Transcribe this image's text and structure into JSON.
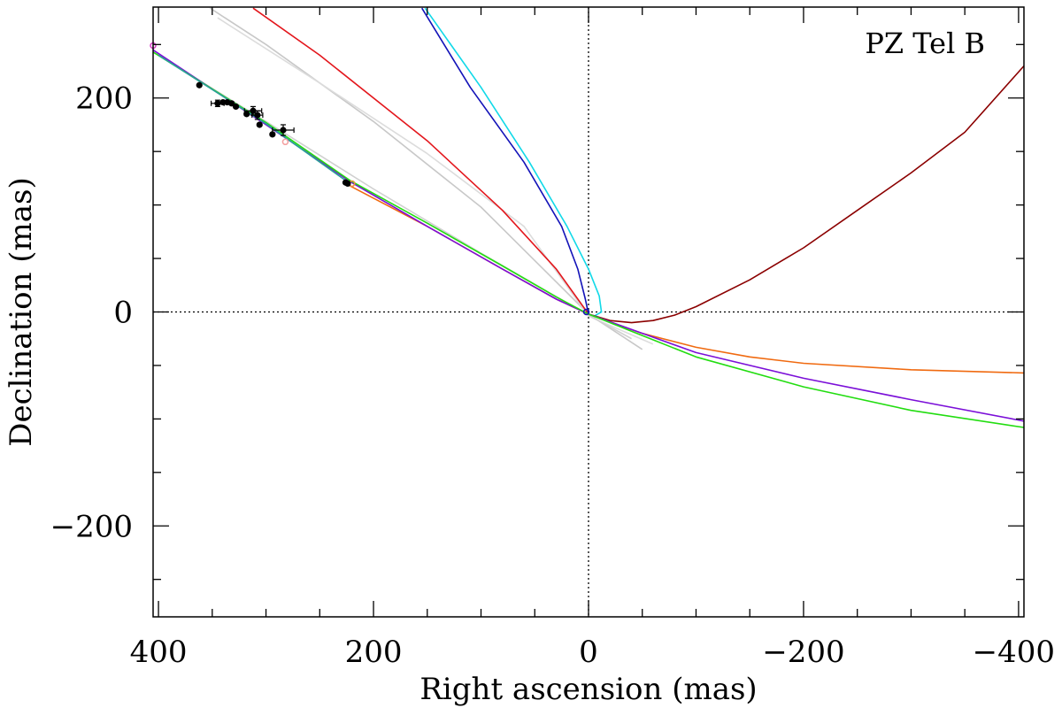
{
  "chart_data": {
    "type": "line",
    "title": "",
    "annotation": "PZ Tel B",
    "xlabel": "Right ascension (mas)",
    "ylabel": "Declination (mas)",
    "xlim": [
      405,
      -405
    ],
    "ylim": [
      -285,
      285
    ],
    "x_ticks": [
      {
        "value": 400,
        "label": "400"
      },
      {
        "value": 200,
        "label": "200"
      },
      {
        "value": 0,
        "label": "0"
      },
      {
        "value": -200,
        "label": "−200"
      },
      {
        "value": -400,
        "label": "−400"
      }
    ],
    "y_ticks": [
      {
        "value": 200,
        "label": "200"
      },
      {
        "value": 0,
        "label": "0"
      },
      {
        "value": -200,
        "label": "−200"
      }
    ],
    "minor_tick_step": 50,
    "zero_lines": true,
    "series": [
      {
        "name": "gray-1",
        "color": "#c8c8c8",
        "points": [
          [
            352,
            284
          ],
          [
            300,
            250
          ],
          [
            200,
            178
          ],
          [
            100,
            98
          ],
          [
            0,
            -2
          ],
          [
            -50,
            -35
          ]
        ]
      },
      {
        "name": "gray-2",
        "color": "#dcdcdc",
        "points": [
          [
            345,
            275
          ],
          [
            250,
            214
          ],
          [
            150,
            148
          ],
          [
            60,
            80
          ],
          [
            0,
            -4
          ],
          [
            -60,
            -30
          ]
        ]
      },
      {
        "name": "gray-3",
        "color": "#d0d0d0",
        "points": [
          [
            405,
            243
          ],
          [
            300,
            178
          ],
          [
            200,
            115
          ],
          [
            100,
            55
          ],
          [
            0,
            -3
          ],
          [
            -40,
            -25
          ]
        ]
      },
      {
        "name": "red",
        "color": "#e3161c",
        "points": [
          [
            312,
            284
          ],
          [
            250,
            240
          ],
          [
            150,
            160
          ],
          [
            80,
            95
          ],
          [
            30,
            40
          ],
          [
            0,
            -2
          ]
        ]
      },
      {
        "name": "blue",
        "color": "#1313b8",
        "points": [
          [
            155,
            284
          ],
          [
            110,
            210
          ],
          [
            60,
            140
          ],
          [
            25,
            80
          ],
          [
            10,
            40
          ],
          [
            3,
            12
          ],
          [
            0,
            -2
          ]
        ]
      },
      {
        "name": "cyan",
        "color": "#11d9e8",
        "points": [
          [
            152,
            284
          ],
          [
            100,
            210
          ],
          [
            55,
            140
          ],
          [
            20,
            80
          ],
          [
            0,
            40
          ],
          [
            -10,
            15
          ],
          [
            -12,
            0
          ],
          [
            -5,
            -4
          ],
          [
            0,
            -2
          ]
        ]
      },
      {
        "name": "dark-red",
        "color": "#8b0000",
        "points": [
          [
            0,
            -2
          ],
          [
            -20,
            -8
          ],
          [
            -40,
            -10
          ],
          [
            -60,
            -8
          ],
          [
            -80,
            -3
          ],
          [
            -100,
            5
          ],
          [
            -150,
            30
          ],
          [
            -200,
            60
          ],
          [
            -250,
            95
          ],
          [
            -300,
            130
          ],
          [
            -350,
            168
          ],
          [
            -405,
            230
          ]
        ]
      },
      {
        "name": "orange",
        "color": "#f06a10",
        "points": [
          [
            222,
            118
          ],
          [
            150,
            80
          ],
          [
            80,
            40
          ],
          [
            30,
            12
          ],
          [
            0,
            -2
          ],
          [
            -50,
            -20
          ],
          [
            -100,
            -33
          ],
          [
            -150,
            -42
          ],
          [
            -200,
            -48
          ],
          [
            -300,
            -54
          ],
          [
            -405,
            -57
          ]
        ]
      },
      {
        "name": "purple",
        "color": "#7b0fd8",
        "points": [
          [
            405,
            245
          ],
          [
            300,
            175
          ],
          [
            222,
            122
          ],
          [
            150,
            80
          ],
          [
            80,
            40
          ],
          [
            30,
            12
          ],
          [
            0,
            -2
          ],
          [
            -100,
            -38
          ],
          [
            -200,
            -62
          ],
          [
            -300,
            -82
          ],
          [
            -405,
            -102
          ]
        ]
      },
      {
        "name": "green",
        "color": "#22dd10",
        "points": [
          [
            405,
            243
          ],
          [
            300,
            177
          ],
          [
            222,
            123
          ],
          [
            150,
            83
          ],
          [
            80,
            43
          ],
          [
            30,
            14
          ],
          [
            0,
            -2
          ],
          [
            -50,
            -22
          ],
          [
            -100,
            -42
          ],
          [
            -200,
            -70
          ],
          [
            -300,
            -92
          ],
          [
            -405,
            -108
          ]
        ]
      },
      {
        "name": "teal",
        "color": "#2aa198",
        "points": [
          [
            400,
            240
          ],
          [
            300,
            176
          ],
          [
            222,
            120
          ]
        ]
      }
    ],
    "observations": [
      {
        "x": 362,
        "y": 212,
        "xerr": 0,
        "yerr": 0
      },
      {
        "x": 345,
        "y": 195,
        "xerr": 6,
        "yerr": 3
      },
      {
        "x": 340,
        "y": 196,
        "xerr": 0,
        "yerr": 0
      },
      {
        "x": 336,
        "y": 196,
        "xerr": 0,
        "yerr": 0
      },
      {
        "x": 332,
        "y": 195,
        "xerr": 0,
        "yerr": 0
      },
      {
        "x": 328,
        "y": 192,
        "xerr": 0,
        "yerr": 0
      },
      {
        "x": 318,
        "y": 185,
        "xerr": 0,
        "yerr": 0
      },
      {
        "x": 312,
        "y": 188,
        "xerr": 8,
        "yerr": 4
      },
      {
        "x": 308,
        "y": 184,
        "xerr": 5,
        "yerr": 4
      },
      {
        "x": 306,
        "y": 175,
        "xerr": 0,
        "yerr": 0
      },
      {
        "x": 294,
        "y": 166,
        "xerr": 0,
        "yerr": 0
      },
      {
        "x": 284,
        "y": 170,
        "xerr": 10,
        "yerr": 5
      },
      {
        "x": 226,
        "y": 121,
        "xerr": 0,
        "yerr": 0
      },
      {
        "x": 224,
        "y": 120,
        "xerr": 0,
        "yerr": 0
      }
    ],
    "markers": [
      {
        "x": 405,
        "y": 249,
        "color": "#d63cc8"
      },
      {
        "x": 282,
        "y": 159,
        "color": "#f4a0a0"
      },
      {
        "x": 220,
        "y": 120,
        "color": "#f09040"
      },
      {
        "x": 2,
        "y": 0,
        "color": "#1313b8"
      }
    ]
  }
}
